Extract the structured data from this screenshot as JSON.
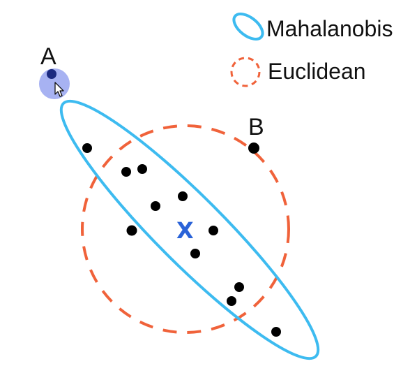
{
  "legend": {
    "mahalanobis_label": "Mahalanobis",
    "euclidean_label": "Euclidean"
  },
  "labels": {
    "point_a": "A",
    "point_b": "B",
    "center": "X"
  },
  "colors": {
    "mahalanobis": "#3dbbf0",
    "euclidean": "#f0623a",
    "center": "#2a63d8",
    "point": "#000000",
    "point_a_fill": "#1c2a80",
    "cursor_halo": "#8a98ee"
  },
  "cursor": {
    "icon": "mouse-pointer-icon",
    "over": "A"
  }
}
